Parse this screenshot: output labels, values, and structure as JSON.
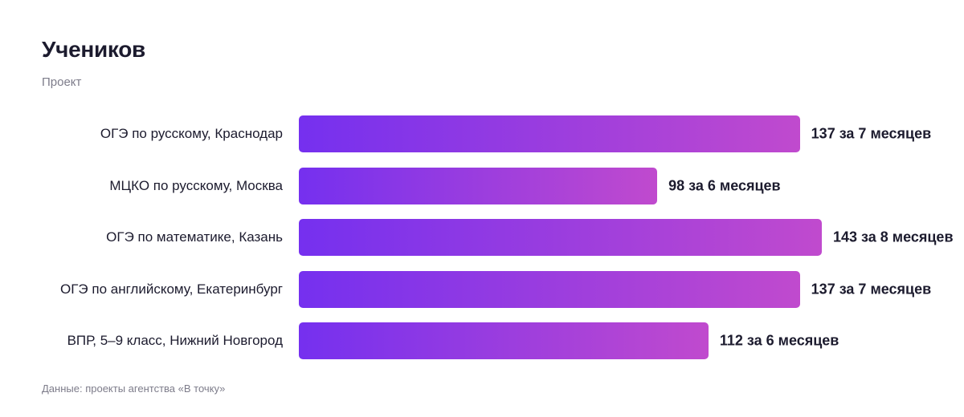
{
  "chart_data": {
    "type": "bar",
    "orientation": "horizontal",
    "title": "Учеников",
    "subtitle": "Проект",
    "categories": [
      "ОГЭ по русскому, Краснодар",
      "МЦКО по русскому, Москва",
      "ОГЭ по математике, Казань",
      "ОГЭ по английскому, Екатеринбург",
      "ВПР, 5–9 класс, Нижний Новгород"
    ],
    "values": [
      137,
      98,
      143,
      137,
      112
    ],
    "value_labels": [
      "137 за 7 месяцев",
      "98 за 6 месяцев",
      "143 за 8 месяцев",
      "137 за 7 месяцев",
      "112 за 6 месяцев"
    ],
    "gradient": [
      "#7530ef",
      "#c04ace"
    ],
    "xlim": [
      0,
      143
    ],
    "source": "Данные: проекты агентства «В точку»"
  }
}
